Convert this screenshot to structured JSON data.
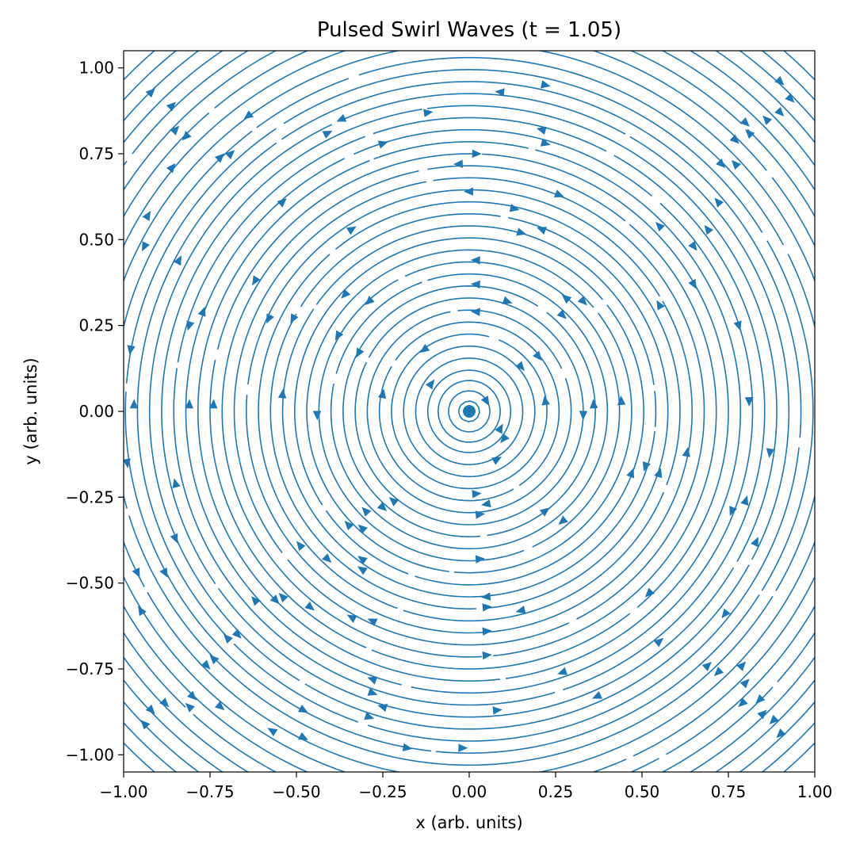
{
  "chart_data": {
    "type": "streamplot",
    "title": "Pulsed Swirl Waves (t = 1.05)",
    "xlabel": "x (arb. units)",
    "ylabel": "y (arb. units)",
    "xlim": [
      -1.0,
      1.0
    ],
    "ylim": [
      -1.05,
      1.05
    ],
    "xticks": [
      -1.0,
      -0.75,
      -0.5,
      -0.25,
      0.0,
      0.25,
      0.5,
      0.75,
      1.0
    ],
    "xtick_labels": [
      "−1.00",
      "−0.75",
      "−0.50",
      "−0.25",
      "0.00",
      "0.25",
      "0.50",
      "0.75",
      "1.00"
    ],
    "yticks": [
      1.0,
      0.75,
      0.5,
      0.25,
      0.0,
      -0.25,
      -0.5,
      -0.75,
      -1.0
    ],
    "ytick_labels": [
      "1.00",
      "0.75",
      "0.50",
      "0.25",
      "0.00",
      "−0.25",
      "−0.50",
      "−0.75",
      "−1.00"
    ],
    "grid": false,
    "color": "#1f77b4",
    "center_marker": {
      "x": 0.0,
      "y": 0.0
    },
    "flow": "concentric swirl around the origin",
    "streamline_radii": [
      0.03,
      0.06,
      0.09,
      0.12,
      0.155,
      0.19,
      0.225,
      0.26,
      0.295,
      0.33,
      0.365,
      0.4,
      0.435,
      0.47,
      0.505,
      0.54,
      0.575,
      0.61,
      0.645,
      0.68,
      0.715,
      0.75,
      0.785,
      0.82,
      0.855,
      0.89,
      0.925,
      0.96,
      0.995,
      1.03,
      1.07,
      1.11,
      1.15,
      1.19,
      1.23,
      1.27,
      1.31,
      1.35,
      1.39
    ],
    "arrow_markers": [
      {
        "x": -0.92,
        "y": 0.93
      },
      {
        "x": -0.86,
        "y": 0.89
      },
      {
        "x": -0.85,
        "y": 0.82
      },
      {
        "x": -0.64,
        "y": 0.86
      },
      {
        "x": -0.37,
        "y": 0.85
      },
      {
        "x": -0.41,
        "y": 0.81
      },
      {
        "x": -0.12,
        "y": 0.87
      },
      {
        "x": 0.22,
        "y": 0.95
      },
      {
        "x": 0.09,
        "y": 0.93
      },
      {
        "x": -0.25,
        "y": 0.78
      },
      {
        "x": 0.02,
        "y": 0.75
      },
      {
        "x": -0.03,
        "y": 0.72
      },
      {
        "x": 0.21,
        "y": 0.82
      },
      {
        "x": 0.22,
        "y": 0.78
      },
      {
        "x": 0.0,
        "y": 0.64
      },
      {
        "x": 0.26,
        "y": 0.63
      },
      {
        "x": 0.13,
        "y": 0.59
      },
      {
        "x": 0.15,
        "y": 0.52
      },
      {
        "x": 0.21,
        "y": 0.53
      },
      {
        "x": -0.54,
        "y": 0.61
      },
      {
        "x": -0.34,
        "y": 0.53
      },
      {
        "x": 0.02,
        "y": 0.44
      },
      {
        "x": 0.02,
        "y": 0.37
      },
      {
        "x": 0.11,
        "y": 0.32
      },
      {
        "x": 0.02,
        "y": 0.29
      },
      {
        "x": -0.29,
        "y": 0.32
      },
      {
        "x": -0.36,
        "y": 0.34
      },
      {
        "x": -0.62,
        "y": 0.38
      },
      {
        "x": -0.84,
        "y": 0.44
      },
      {
        "x": -0.94,
        "y": 0.48
      },
      {
        "x": -0.93,
        "y": 0.57
      },
      {
        "x": -0.86,
        "y": 0.71
      },
      {
        "x": -0.82,
        "y": 0.8
      },
      {
        "x": -0.72,
        "y": 0.74
      },
      {
        "x": -0.69,
        "y": 0.75
      },
      {
        "x": 0.9,
        "y": 0.96
      },
      {
        "x": 0.93,
        "y": 0.91
      },
      {
        "x": 0.8,
        "y": 0.84
      },
      {
        "x": 0.86,
        "y": 0.85
      },
      {
        "x": 0.9,
        "y": 0.87
      },
      {
        "x": 0.77,
        "y": 0.79
      },
      {
        "x": 0.81,
        "y": 0.81
      },
      {
        "x": 0.73,
        "y": 0.72
      },
      {
        "x": 0.77,
        "y": 0.72
      },
      {
        "x": 0.72,
        "y": 0.61
      },
      {
        "x": 0.55,
        "y": 0.54
      },
      {
        "x": 0.69,
        "y": 0.53
      },
      {
        "x": 0.65,
        "y": 0.48
      },
      {
        "x": 0.65,
        "y": 0.37
      },
      {
        "x": 0.55,
        "y": 0.31
      },
      {
        "x": 0.28,
        "y": 0.33
      },
      {
        "x": 0.33,
        "y": 0.32
      },
      {
        "x": 0.27,
        "y": 0.28
      },
      {
        "x": 0.2,
        "y": 0.16
      },
      {
        "x": 0.15,
        "y": 0.13
      },
      {
        "x": 0.78,
        "y": 0.25
      },
      {
        "x": -0.98,
        "y": 0.18
      },
      {
        "x": -0.97,
        "y": 0.02
      },
      {
        "x": -0.99,
        "y": -0.15
      },
      {
        "x": -0.81,
        "y": 0.25
      },
      {
        "x": -0.77,
        "y": 0.29
      },
      {
        "x": -0.81,
        "y": 0.02
      },
      {
        "x": -0.74,
        "y": 0.02
      },
      {
        "x": -0.58,
        "y": 0.27
      },
      {
        "x": -0.51,
        "y": 0.27
      },
      {
        "x": -0.38,
        "y": 0.22
      },
      {
        "x": -0.32,
        "y": 0.17
      },
      {
        "x": -0.13,
        "y": 0.18
      },
      {
        "x": -0.11,
        "y": 0.08
      },
      {
        "x": -0.54,
        "y": 0.05
      },
      {
        "x": -0.44,
        "y": -0.01
      },
      {
        "x": -0.25,
        "y": 0.05
      },
      {
        "x": 0.05,
        "y": 0.03
      },
      {
        "x": 0.09,
        "y": -0.05
      },
      {
        "x": 0.1,
        "y": -0.08
      },
      {
        "x": 0.08,
        "y": -0.14
      },
      {
        "x": 0.22,
        "y": 0.03
      },
      {
        "x": 0.33,
        "y": -0.01
      },
      {
        "x": 0.36,
        "y": 0.02
      },
      {
        "x": 0.44,
        "y": 0.03
      },
      {
        "x": 0.81,
        "y": 0.03
      },
      {
        "x": 0.87,
        "y": -0.12
      },
      {
        "x": 0.63,
        "y": -0.12
      },
      {
        "x": 0.55,
        "y": -0.18
      },
      {
        "x": 0.51,
        "y": -0.16
      },
      {
        "x": 0.47,
        "y": -0.18
      },
      {
        "x": 0.8,
        "y": -0.26
      },
      {
        "x": 0.76,
        "y": -0.29
      },
      {
        "x": 0.83,
        "y": -0.38
      },
      {
        "x": 0.74,
        "y": -0.59
      },
      {
        "x": 0.52,
        "y": -0.53
      },
      {
        "x": 0.55,
        "y": -0.67
      },
      {
        "x": 0.69,
        "y": -0.74
      },
      {
        "x": 0.72,
        "y": -0.76
      },
      {
        "x": 0.79,
        "y": -0.74
      },
      {
        "x": 0.8,
        "y": -0.79
      },
      {
        "x": 0.79,
        "y": -0.85
      },
      {
        "x": 0.84,
        "y": -0.84
      },
      {
        "x": 0.85,
        "y": -0.88
      },
      {
        "x": 0.88,
        "y": -0.9
      },
      {
        "x": 0.9,
        "y": -0.94
      },
      {
        "x": 0.27,
        "y": -0.76
      },
      {
        "x": 0.37,
        "y": -0.83
      },
      {
        "x": 0.08,
        "y": -0.87
      },
      {
        "x": 0.05,
        "y": -0.71
      },
      {
        "x": 0.05,
        "y": -0.64
      },
      {
        "x": 0.05,
        "y": -0.57
      },
      {
        "x": 0.05,
        "y": -0.54
      },
      {
        "x": 0.15,
        "y": -0.58
      },
      {
        "x": 0.03,
        "y": -0.43
      },
      {
        "x": 0.03,
        "y": -0.3
      },
      {
        "x": 0.05,
        "y": -0.27
      },
      {
        "x": 0.02,
        "y": -0.24
      },
      {
        "x": 0.22,
        "y": -0.29
      },
      {
        "x": 0.27,
        "y": -0.32
      },
      {
        "x": -0.25,
        "y": -0.28
      },
      {
        "x": -0.3,
        "y": -0.29
      },
      {
        "x": -0.22,
        "y": -0.26
      },
      {
        "x": -0.35,
        "y": -0.33
      },
      {
        "x": -0.31,
        "y": -0.34
      },
      {
        "x": -0.49,
        "y": -0.39
      },
      {
        "x": -0.41,
        "y": -0.43
      },
      {
        "x": -0.31,
        "y": -0.43
      },
      {
        "x": -0.31,
        "y": -0.46
      },
      {
        "x": -0.62,
        "y": -0.55
      },
      {
        "x": -0.56,
        "y": -0.55
      },
      {
        "x": -0.54,
        "y": -0.54
      },
      {
        "x": -0.46,
        "y": -0.57
      },
      {
        "x": -0.34,
        "y": -0.6
      },
      {
        "x": -0.28,
        "y": -0.61
      },
      {
        "x": -0.28,
        "y": -0.78
      },
      {
        "x": -0.28,
        "y": -0.82
      },
      {
        "x": -0.25,
        "y": -0.86
      },
      {
        "x": -0.48,
        "y": -0.87
      },
      {
        "x": -0.29,
        "y": -0.89
      },
      {
        "x": -0.57,
        "y": -0.93
      },
      {
        "x": -0.48,
        "y": -0.95
      },
      {
        "x": -0.18,
        "y": -0.98
      },
      {
        "x": -0.02,
        "y": -0.98
      },
      {
        "x": -0.67,
        "y": -0.65
      },
      {
        "x": -0.7,
        "y": -0.66
      },
      {
        "x": -0.74,
        "y": -0.72
      },
      {
        "x": -0.76,
        "y": -0.74
      },
      {
        "x": -0.8,
        "y": -0.83
      },
      {
        "x": -0.72,
        "y": -0.86
      },
      {
        "x": -0.81,
        "y": -0.86
      },
      {
        "x": -0.88,
        "y": -0.85
      },
      {
        "x": -0.92,
        "y": -0.87
      },
      {
        "x": -0.94,
        "y": -0.91
      },
      {
        "x": -0.95,
        "y": -0.58
      },
      {
        "x": -0.96,
        "y": -0.47
      },
      {
        "x": -0.88,
        "y": -0.47
      },
      {
        "x": -0.85,
        "y": -0.37
      },
      {
        "x": -0.85,
        "y": -0.21
      }
    ]
  }
}
